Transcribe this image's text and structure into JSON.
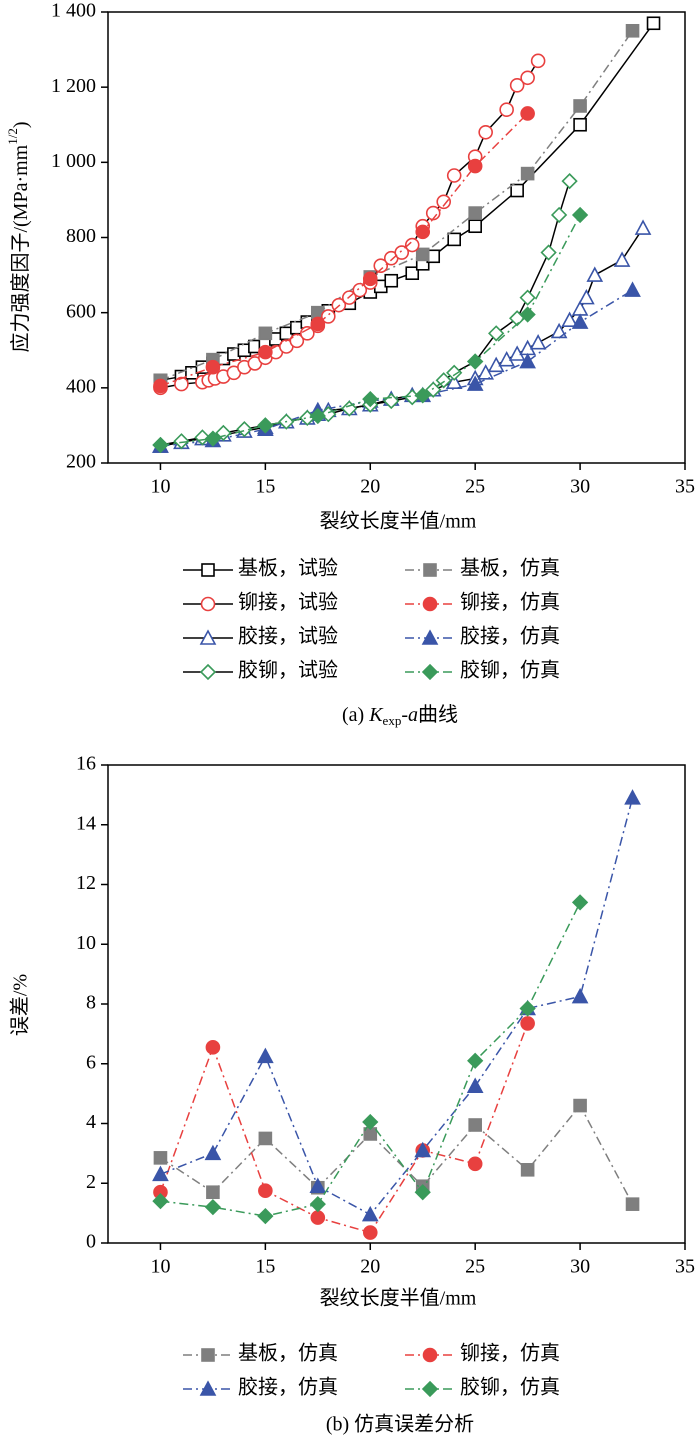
{
  "chart_data": [
    {
      "type": "line",
      "ylabel": [
        "应力强度因子/(MPa·mm",
        "1/2",
        ")"
      ],
      "xlabel": "裂纹长度半值/mm",
      "caption": [
        "(a) ",
        "K",
        "exp",
        "-",
        "a",
        "曲线"
      ],
      "xlim": [
        7.5,
        35
      ],
      "xticks": [
        10,
        15,
        20,
        25,
        30,
        35
      ],
      "ylim": [
        200,
        1400
      ],
      "yticks": [
        200,
        400,
        600,
        800,
        {
          "value": 1000,
          "label": "1 000"
        },
        {
          "value": 1200,
          "label": "1 200"
        },
        {
          "value": 1400,
          "label": "1 400"
        }
      ],
      "legend": "below",
      "series": [
        {
          "name": "基板，试验",
          "color": "#000000",
          "line_color": "#000000",
          "dash": "solid",
          "marker": "square",
          "filled": false,
          "x": [
            10,
            11,
            11.5,
            12,
            12.5,
            13,
            13.5,
            14,
            14.5,
            15,
            15.5,
            16,
            16.5,
            17,
            17.5,
            18,
            19,
            20,
            20.5,
            21,
            22,
            22.5,
            23,
            24,
            25,
            27,
            30,
            33.5
          ],
          "values": [
            420,
            430,
            440,
            455,
            465,
            478,
            490,
            500,
            510,
            520,
            530,
            545,
            560,
            575,
            590,
            605,
            625,
            655,
            670,
            685,
            705,
            730,
            750,
            795,
            830,
            925,
            1100,
            1370
          ]
        },
        {
          "name": "基板，仿真",
          "color": "#7f7f7f",
          "line_color": "#7f7f7f",
          "dash": "dashdot",
          "marker": "square",
          "filled": true,
          "x": [
            10,
            12.5,
            15,
            17.5,
            20,
            22.5,
            25,
            27.5,
            30,
            32.5
          ],
          "values": [
            420,
            475,
            545,
            600,
            695,
            755,
            865,
            970,
            1150,
            1350
          ]
        },
        {
          "name": "铆接，试验",
          "color": "#e8403f",
          "line_color": "#000000",
          "dash": "solid",
          "marker": "circle",
          "filled": false,
          "x": [
            10,
            11,
            12,
            12.3,
            12.6,
            13,
            13.5,
            14,
            14.5,
            15,
            15.5,
            16,
            16.5,
            17,
            17.5,
            18,
            18.5,
            19,
            19.5,
            20,
            20.5,
            21,
            21.5,
            22,
            22.5,
            23,
            23.5,
            24,
            25,
            25.5,
            26.5,
            27,
            27.5,
            28
          ],
          "values": [
            400,
            410,
            415,
            420,
            425,
            430,
            440,
            455,
            465,
            480,
            495,
            510,
            525,
            545,
            565,
            590,
            620,
            640,
            660,
            680,
            725,
            745,
            760,
            780,
            830,
            865,
            895,
            965,
            1015,
            1080,
            1140,
            1205,
            1225,
            1270
          ]
        },
        {
          "name": "铆接，仿真",
          "color": "#e8403f",
          "line_color": "#e8403f",
          "dash": "dashdot",
          "marker": "circle",
          "filled": true,
          "x": [
            10,
            12.5,
            15,
            17.5,
            20,
            22.5,
            25,
            27.5
          ],
          "values": [
            405,
            455,
            495,
            570,
            690,
            815,
            990,
            1130
          ]
        },
        {
          "name": "胶接，试验",
          "color": "#3a55a8",
          "line_color": "#000000",
          "dash": "solid",
          "marker": "triangle",
          "filled": false,
          "x": [
            10,
            11,
            12,
            13,
            14,
            15,
            16,
            17,
            17.5,
            18,
            19,
            20,
            21,
            22,
            23,
            24,
            25,
            25.5,
            26,
            26.5,
            27,
            27.5,
            28,
            29,
            29.5,
            30,
            30.3,
            30.7,
            32,
            33
          ],
          "values": [
            245,
            255,
            265,
            275,
            285,
            295,
            310,
            320,
            330,
            340,
            345,
            355,
            370,
            380,
            395,
            415,
            425,
            440,
            460,
            475,
            490,
            505,
            520,
            550,
            580,
            610,
            640,
            700,
            740,
            825
          ]
        },
        {
          "name": "胶接，仿真",
          "color": "#3a55a8",
          "line_color": "#3a55a8",
          "dash": "dashdot",
          "marker": "triangle",
          "filled": true,
          "x": [
            10,
            12.5,
            15,
            17.5,
            20,
            22.5,
            25,
            27.5,
            30,
            32.5
          ],
          "values": [
            245,
            260,
            290,
            340,
            365,
            380,
            410,
            470,
            575,
            660
          ]
        },
        {
          "name": "胶铆，试验",
          "color": "#3a9a5a",
          "line_color": "#000000",
          "dash": "solid",
          "marker": "diamond",
          "filled": false,
          "x": [
            10,
            11,
            12,
            13,
            14,
            15,
            16,
            17,
            18,
            19,
            20,
            21,
            22,
            23,
            23.5,
            24,
            25,
            26,
            27,
            27.5,
            28.5,
            29,
            29.5
          ],
          "values": [
            248,
            258,
            268,
            280,
            290,
            300,
            310,
            320,
            330,
            345,
            355,
            365,
            375,
            395,
            420,
            440,
            470,
            545,
            585,
            640,
            760,
            860,
            950
          ]
        },
        {
          "name": "胶铆，仿真",
          "color": "#3a9a5a",
          "line_color": "#3a9a5a",
          "dash": "dashdot",
          "marker": "diamond",
          "filled": true,
          "x": [
            10,
            12.5,
            15,
            17.5,
            20,
            22.5,
            25,
            27.5,
            30
          ],
          "values": [
            248,
            265,
            300,
            325,
            370,
            380,
            470,
            595,
            860
          ]
        }
      ]
    },
    {
      "type": "line",
      "ylabel": [
        "误差/%"
      ],
      "xlabel": "裂纹长度半值/mm",
      "caption": [
        "(b) 仿真误差分析"
      ],
      "xlim": [
        7.5,
        35
      ],
      "xticks": [
        10,
        15,
        20,
        25,
        30,
        35
      ],
      "ylim": [
        0,
        16
      ],
      "yticks": [
        0,
        2,
        4,
        6,
        8,
        10,
        12,
        14,
        16
      ],
      "legend": "below",
      "series": [
        {
          "name": "基板，仿真",
          "color": "#7f7f7f",
          "line_color": "#7f7f7f",
          "dash": "dashdot",
          "marker": "square",
          "filled": true,
          "x": [
            10,
            12.5,
            15,
            17.5,
            20,
            22.5,
            25,
            27.5,
            30,
            32.5
          ],
          "values": [
            2.85,
            1.7,
            3.5,
            1.85,
            3.65,
            1.9,
            3.95,
            2.45,
            4.6,
            1.3
          ]
        },
        {
          "name": "铆接，仿真",
          "color": "#e8403f",
          "line_color": "#e8403f",
          "dash": "dashdot",
          "marker": "circle",
          "filled": true,
          "x": [
            10,
            12.5,
            15,
            17.5,
            20,
            22.5,
            25,
            27.5
          ],
          "values": [
            1.7,
            6.55,
            1.75,
            0.85,
            0.35,
            3.1,
            2.65,
            7.35
          ]
        },
        {
          "name": "胶接，仿真",
          "color": "#3a55a8",
          "line_color": "#3a55a8",
          "dash": "dashdot",
          "marker": "triangle",
          "filled": true,
          "x": [
            10,
            12.5,
            15,
            17.5,
            20,
            22.5,
            25,
            27.5,
            30,
            32.5
          ],
          "values": [
            2.3,
            3.0,
            6.25,
            1.9,
            0.95,
            3.1,
            5.25,
            7.85,
            8.25,
            14.9
          ]
        },
        {
          "name": "胶铆，仿真",
          "color": "#3a9a5a",
          "line_color": "#3a9a5a",
          "dash": "dashdot",
          "marker": "diamond",
          "filled": true,
          "x": [
            10,
            12.5,
            15,
            17.5,
            20,
            22.5,
            25,
            27.5,
            30
          ],
          "values": [
            1.4,
            1.2,
            0.9,
            1.3,
            4.05,
            1.7,
            6.1,
            7.85,
            11.4
          ]
        }
      ]
    }
  ]
}
